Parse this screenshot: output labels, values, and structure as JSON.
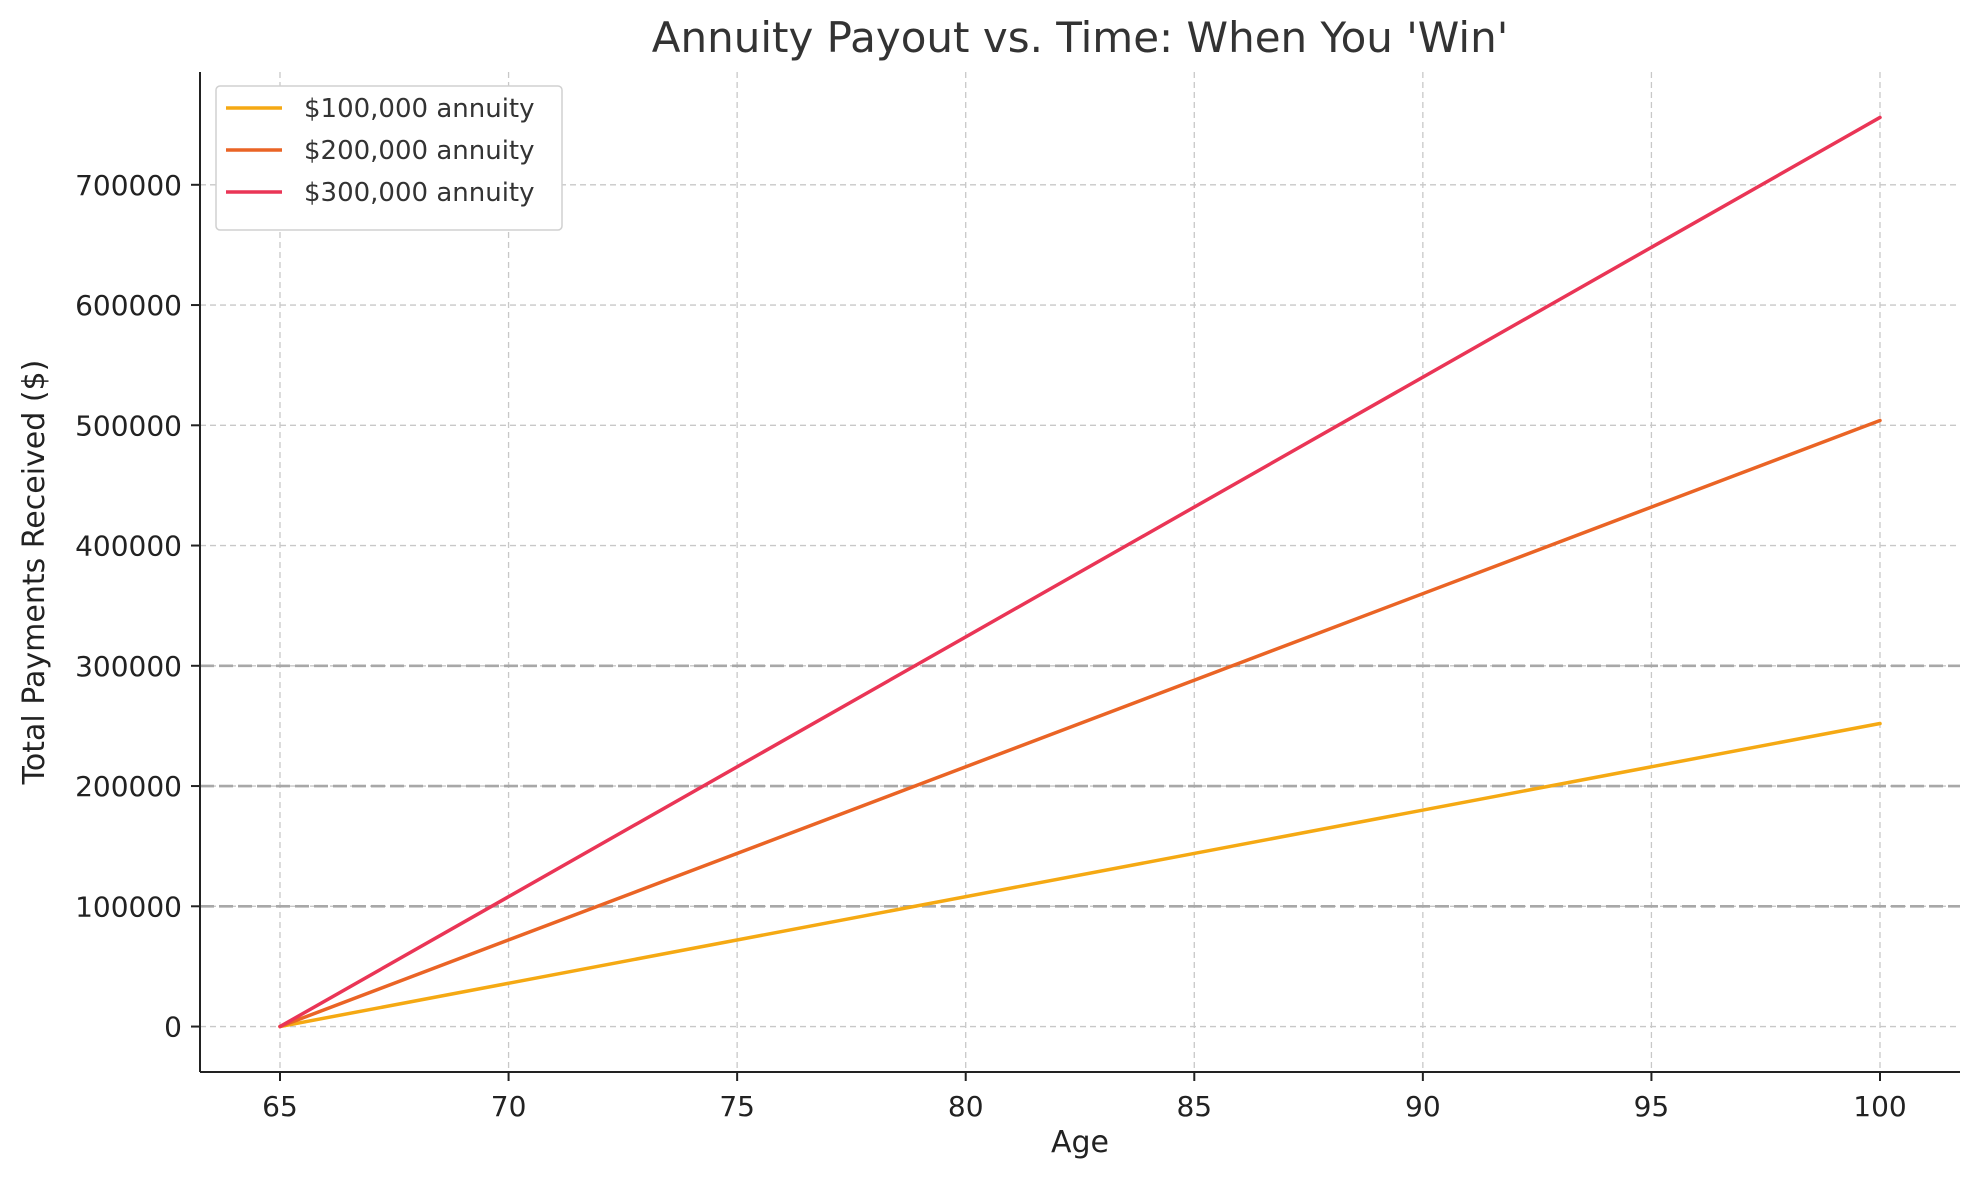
{
  "chart_data": {
    "type": "line",
    "title": "Annuity Payout vs. Time: When You 'Win'",
    "xlabel": "Age",
    "ylabel": "Total Payments Received ($)",
    "xlim": [
      63.25,
      101.75
    ],
    "ylim": [
      -37800,
      793800
    ],
    "x": [
      65,
      100
    ],
    "xticks": [
      65,
      70,
      75,
      80,
      85,
      90,
      95,
      100
    ],
    "yticks": [
      0,
      100000,
      200000,
      300000,
      400000,
      500000,
      600000,
      700000
    ],
    "xtick_labels": [
      "65",
      "70",
      "75",
      "80",
      "85",
      "90",
      "95",
      "100"
    ],
    "ytick_labels": [
      "0",
      "100000",
      "200000",
      "300000",
      "400000",
      "500000",
      "600000",
      "700000"
    ],
    "grid": true,
    "legend_position": "top-left",
    "reference_lines": [
      100000,
      200000,
      300000
    ],
    "series": [
      {
        "name": "$100,000 annuity",
        "color": "#f5a913",
        "values": [
          0,
          252000
        ]
      },
      {
        "name": "$200,000 annuity",
        "color": "#ea6425",
        "values": [
          0,
          504000
        ]
      },
      {
        "name": "$300,000 annuity",
        "color": "#ea3556",
        "values": [
          0,
          756000
        ]
      }
    ]
  }
}
